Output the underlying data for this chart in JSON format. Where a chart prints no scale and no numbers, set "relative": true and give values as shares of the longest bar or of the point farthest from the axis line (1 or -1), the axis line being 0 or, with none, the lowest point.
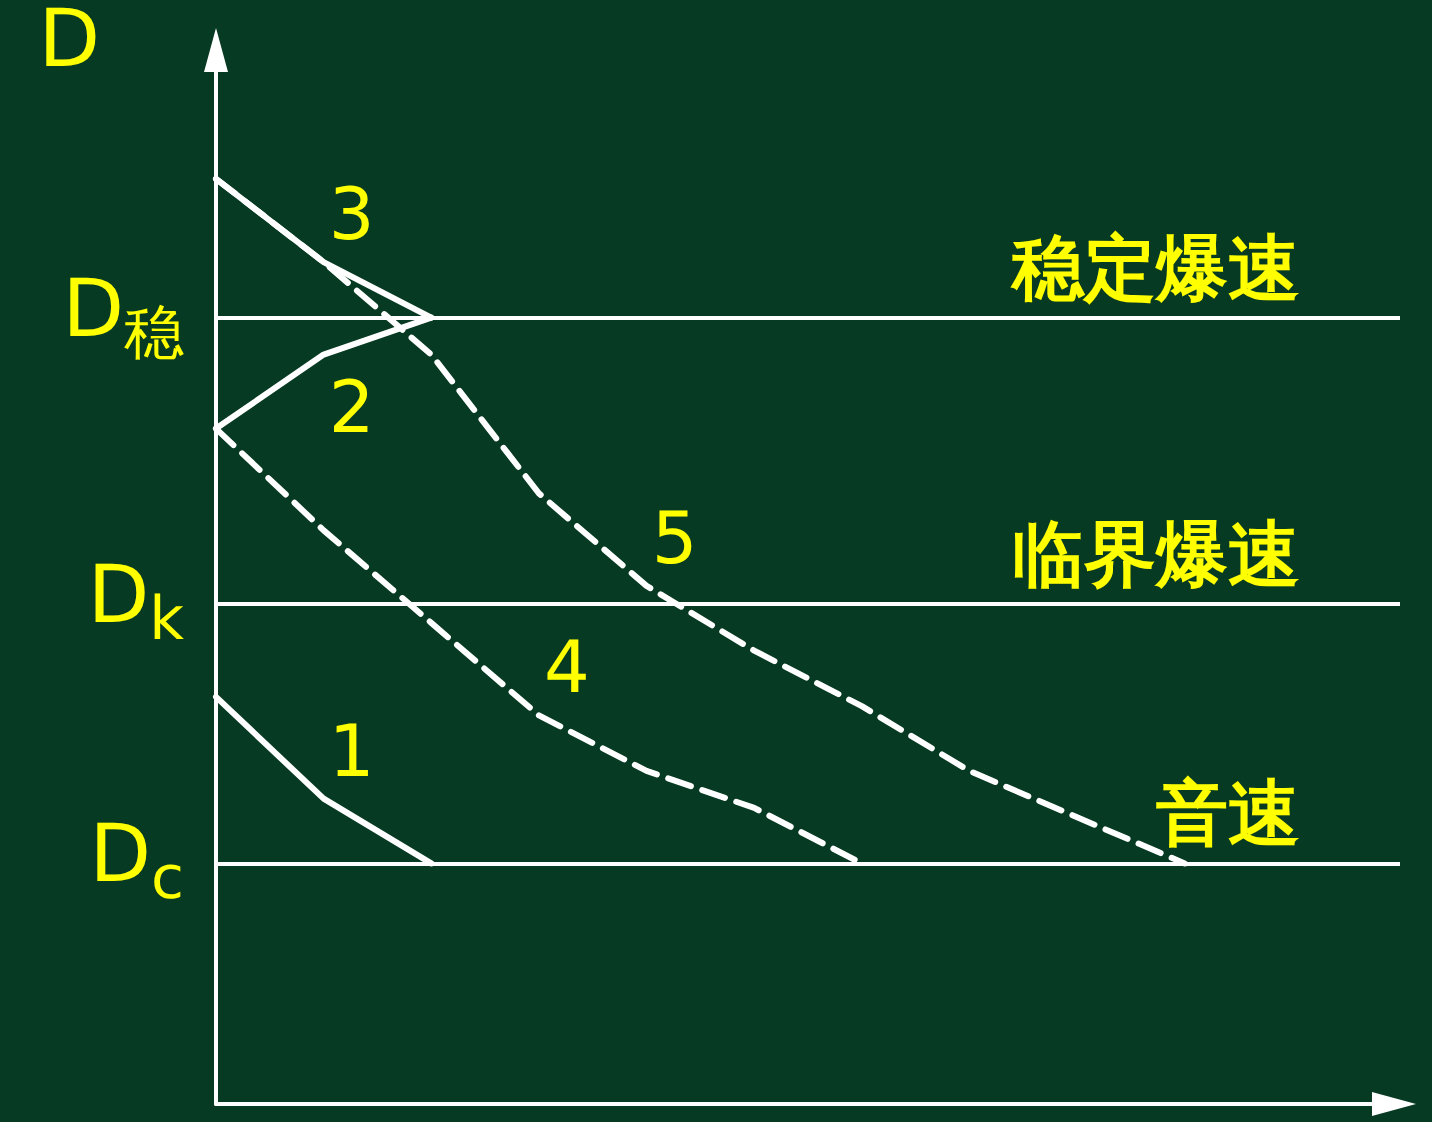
{
  "chart_data": {
    "type": "line",
    "relative": true,
    "ylabel": "D",
    "categories": [
      null,
      null,
      null,
      null,
      null,
      null,
      null,
      null,
      null,
      null,
      null,
      null
    ],
    "series": [
      {
        "name": "3",
        "color": "#ffffff",
        "line_style": "solid",
        "values": [
          1.0,
          0.91,
          0.85,
          null,
          null,
          null,
          null,
          null,
          null,
          null,
          null,
          null
        ]
      },
      {
        "name": "2",
        "color": "#ffffff",
        "line_style": "solid",
        "values": [
          0.73,
          0.81,
          0.85,
          null,
          null,
          null,
          null,
          null,
          null,
          null,
          null,
          null
        ]
      },
      {
        "name": "1",
        "color": "#ffffff",
        "line_style": "solid",
        "values": [
          0.44,
          0.33,
          0.26,
          null,
          null,
          null,
          null,
          null,
          null,
          null,
          null,
          null
        ]
      },
      {
        "name": "4",
        "color": "#ffffff",
        "line_style": "dashed",
        "values": [
          0.73,
          0.62,
          0.52,
          0.42,
          0.36,
          0.32,
          0.26,
          null,
          null,
          null,
          null,
          null
        ]
      },
      {
        "name": "5",
        "color": "#ffffff",
        "line_style": "dashed",
        "values": [
          1.0,
          0.91,
          0.81,
          0.66,
          0.56,
          0.49,
          0.43,
          0.36,
          0.31,
          0.26,
          null,
          null
        ]
      }
    ],
    "ref_lines": [
      {
        "axis": "y",
        "value": 0.85,
        "label": "稳定爆速",
        "color": "#ffffff"
      },
      {
        "axis": "y",
        "value": 0.54,
        "label": "临界爆速",
        "color": "#ffffff"
      },
      {
        "axis": "y",
        "value": 0.26,
        "label": "音速",
        "color": "#ffffff"
      }
    ],
    "annotations": [
      "D$_{稳}$",
      "D$_{k}$",
      "D$_{c}$"
    ],
    "legend": false,
    "grid": false
  }
}
